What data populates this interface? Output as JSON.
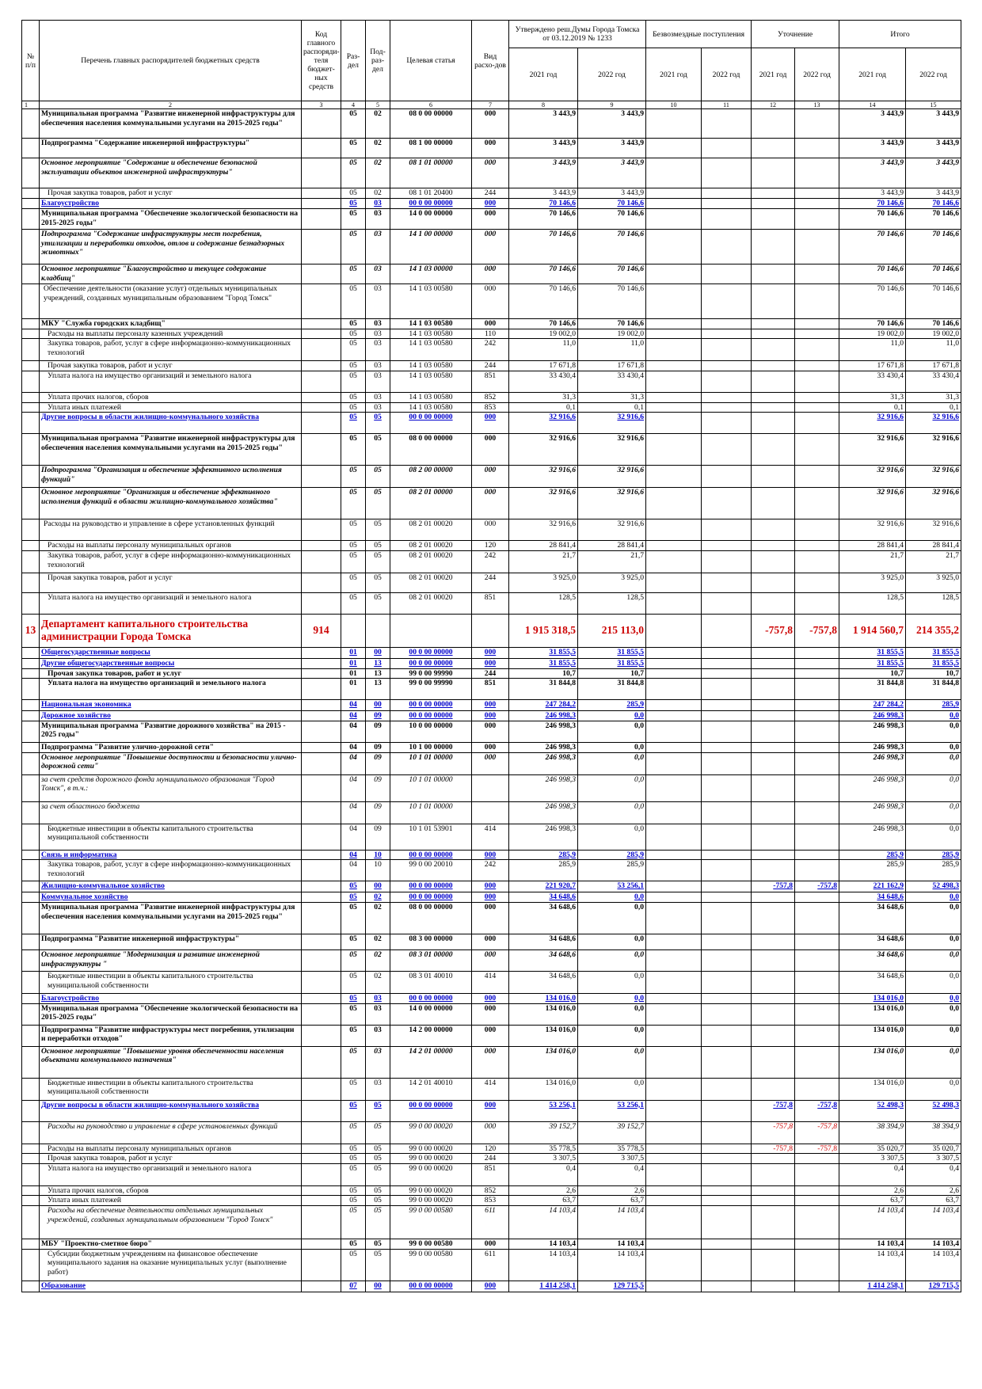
{
  "header": {
    "col1": "№ п/п",
    "col2": "Перечень главных распорядителей бюджетных средств",
    "col3": "Код главного распоряди-теля бюджет-ных средств",
    "col4": "Раз-дел",
    "col5": "Под-раз-дел",
    "col6": "Целевая статья",
    "col7": "Вид расхо-дов",
    "approved": "Утверждено реш.Думы Города Томска от 03.12.2019 № 1233",
    "gratis": "Безвозмездные поступления",
    "clarify": "Уточнение",
    "total": "Итого",
    "y2021": "2021 год",
    "y2022": "2022 год",
    "colnums": [
      "1",
      "2",
      "3",
      "4",
      "5",
      "6",
      "7",
      "8",
      "9",
      "10",
      "11",
      "12",
      "13",
      "14",
      "15"
    ]
  },
  "rows": [
    {
      "s": "b",
      "name": "Муниципальная программа \"Развитие инженерной инфраструктуры для обеспечения населения коммунальными услугами на 2015-2025 годы\"",
      "rz": "05",
      "pr": "02",
      "cs": "08 0 00 00000",
      "vr": "000",
      "a21": "3 443,9",
      "a22": "3 443,9",
      "t21": "3 443,9",
      "t22": "3 443,9",
      "h": 37
    },
    {
      "s": "b",
      "name": "Подпрограмма \"Содержание инженерной инфраструктуры\"",
      "rz": "05",
      "pr": "02",
      "cs": "08 1 00 00000",
      "vr": "000",
      "a21": "3 443,9",
      "a22": "3 443,9",
      "t21": "3 443,9",
      "t22": "3 443,9",
      "h": 25
    },
    {
      "s": "bi",
      "name": " Основное мероприятие \"Содержание и обеспечение безопасной эксплуатации объектов инженерной инфраструктуры\"",
      "rz": "05",
      "pr": "02",
      "cs": "08 1 01 00000",
      "vr": "000",
      "a21": "3 443,9",
      "a22": "3 443,9",
      "t21": "3 443,9",
      "t22": "3 443,9",
      "h": 38
    },
    {
      "s": "ind",
      "name": "Прочая закупка товаров, работ и услуг",
      "rz": "05",
      "pr": "02",
      "cs": "08 1 01 20400",
      "vr": "244",
      "a21": "3 443,9",
      "a22": "3 443,9",
      "t21": "3 443,9",
      "t22": "3 443,9",
      "h": 13
    },
    {
      "s": "blue",
      "name": "Благоустройство",
      "rz": "05",
      "pr": "03",
      "cs": "00 0 00 00000",
      "vr": "000",
      "a21": "70 146,6",
      "a22": "70 146,6",
      "t21": "70 146,6",
      "t22": "70 146,6",
      "h": 13
    },
    {
      "s": "b",
      "name": "Муниципальная программа \"Обеспечение экологической безопасности на 2015-2025 годы\"",
      "rz": "05",
      "pr": "03",
      "cs": "14 0 00 00000",
      "vr": "000",
      "a21": "70 146,6",
      "a22": "70 146,6",
      "t21": "70 146,6",
      "t22": "70 146,6",
      "h": 26
    },
    {
      "s": "bi",
      "name": "Подпрограмма \"Содержание инфраструктуры мест погребения, утилизации и переработки отходов, отлов и содержание безнадзорных животных\"",
      "rz": "05",
      "pr": "03",
      "cs": "14 1 00 00000",
      "vr": "000",
      "a21": "70 146,6",
      "a22": "70 146,6",
      "t21": "70 146,6",
      "t22": "70 146,6",
      "h": 44
    },
    {
      "s": "bi",
      "name": " Основное мероприятие \"Благоустройство и текущее содержание кладбищ\"",
      "rz": "05",
      "pr": "03",
      "cs": "14 1 03 00000",
      "vr": "000",
      "a21": "70 146,6",
      "a22": "70 146,6",
      "t21": "70 146,6",
      "t22": "70 146,6",
      "h": 25
    },
    {
      "s": "ind2",
      "name": "Обеспечение деятельности (оказание услуг) отдельных муниципальных учреждений, созданных муниципальным образованием \"Город Томск\"",
      "rz": "05",
      "pr": "03",
      "cs": "14 1 03 00580",
      "vr": "000",
      "a21": "70 146,6",
      "a22": "70 146,6",
      "t21": "70 146,6",
      "t22": "70 146,6",
      "h": 44
    },
    {
      "s": "b",
      "name": "МКУ \"Служба городских кладбищ\"",
      "rz": "05",
      "pr": "03",
      "cs": "14 1 03 00580",
      "vr": "000",
      "a21": "70 146,6",
      "a22": "70 146,6",
      "t21": "70 146,6",
      "t22": "70 146,6",
      "h": 12
    },
    {
      "s": "ind",
      "name": "Расходы на выплаты персоналу казенных учреждений",
      "rz": "05",
      "pr": "03",
      "cs": "14 1 03 00580",
      "vr": "110",
      "a21": "19 002,0",
      "a22": "19 002,0",
      "t21": "19 002,0",
      "t22": "19 002,0",
      "h": 12
    },
    {
      "s": "ind",
      "name": "Закупка товаров, работ, услуг в сфере информационно-коммуникационных технологий",
      "rz": "05",
      "pr": "03",
      "cs": "14 1 03 00580",
      "vr": "242",
      "a21": "11,0",
      "a22": "11,0",
      "t21": "11,0",
      "t22": "11,0",
      "h": 28
    },
    {
      "s": "ind",
      "name": "Прочая закупка товаров, работ и услуг",
      "rz": "05",
      "pr": "03",
      "cs": "14 1 03 00580",
      "vr": "244",
      "a21": "17 671,8",
      "a22": "17 671,8",
      "t21": "17 671,8",
      "t22": "17 671,8",
      "h": 12
    },
    {
      "s": "ind",
      "name": "Уплата налога на имущество организаций и земельного налога",
      "rz": "05",
      "pr": "03",
      "cs": "14 1 03 00580",
      "vr": "851",
      "a21": "33 430,4",
      "a22": "33 430,4",
      "t21": "33 430,4",
      "t22": "33 430,4",
      "h": 27
    },
    {
      "s": "ind",
      "name": "Уплата прочих налогов, сборов",
      "rz": "05",
      "pr": "03",
      "cs": "14 1 03 00580",
      "vr": "852",
      "a21": "31,3",
      "a22": "31,3",
      "t21": "31,3",
      "t22": "31,3",
      "h": 13
    },
    {
      "s": "ind",
      "name": "Уплата иных платежей",
      "rz": "05",
      "pr": "03",
      "cs": "14 1 03 00580",
      "vr": "853",
      "a21": "0,1",
      "a22": "0,1",
      "t21": "0,1",
      "t22": "0,1",
      "h": 12
    },
    {
      "s": "blue",
      "name": "Другие вопросы в области жилищно-коммунального хозяйства",
      "rz": "05",
      "pr": "05",
      "cs": "00 0 00 00000",
      "vr": "000",
      "a21": "32 916,6",
      "a22": "32 916,6",
      "t21": "32 916,6",
      "t22": "32 916,6",
      "h": 27
    },
    {
      "s": "b",
      "name": "Муниципальная программа \"Развитие инженерной инфраструктуры для обеспечения населения коммунальными услугами на 2015-2025 годы\"",
      "rz": "05",
      "pr": "05",
      "cs": "08 0 00 00000",
      "vr": "000",
      "a21": "32 916,6",
      "a22": "32 916,6",
      "t21": "32 916,6",
      "t22": "32 916,6",
      "h": 40
    },
    {
      "s": "bi",
      "name": "Подпрограмма \"Организация и обеспечение эффективного исполнения функций\"",
      "rz": "05",
      "pr": "05",
      "cs": "08 2 00 00000",
      "vr": "000",
      "a21": "32 916,6",
      "a22": "32 916,6",
      "t21": "32 916,6",
      "t22": "32 916,6",
      "h": 28
    },
    {
      "s": "bi",
      "name": " Основное мероприятие \"Организация и обеспечение эффективного исполнения функций в области жилищно-коммунального хозяйства\"",
      "rz": "05",
      "pr": "05",
      "cs": "08 2 01 00000",
      "vr": "000",
      "a21": "32 916,6",
      "a22": "32 916,6",
      "t21": "32 916,6",
      "t22": "32 916,6",
      "h": 40
    },
    {
      "s": "ind2",
      "name": "Расходы на руководство и управление в сфере установленных функций",
      "rz": "05",
      "pr": "05",
      "cs": "08 2 01 00020",
      "vr": "000",
      "a21": "32 916,6",
      "a22": "32 916,6",
      "t21": "32 916,6",
      "t22": "32 916,6",
      "h": 27
    },
    {
      "s": "ind",
      "name": "Расходы на выплаты персоналу муниципальных органов",
      "rz": "05",
      "pr": "05",
      "cs": "08 2 01 00020",
      "vr": "120",
      "a21": "28 841,4",
      "a22": "28 841,4",
      "t21": "28 841,4",
      "t22": "28 841,4",
      "h": 12
    },
    {
      "s": "ind",
      "name": "Закупка товаров, работ, услуг в сфере информационно-коммуникационных технологий",
      "rz": "05",
      "pr": "05",
      "cs": "08 2 01 00020",
      "vr": "242",
      "a21": "21,7",
      "a22": "21,7",
      "t21": "21,7",
      "t22": "21,7",
      "h": 28
    },
    {
      "s": "ind",
      "name": "Прочая закупка товаров, работ и услуг",
      "rz": "05",
      "pr": "05",
      "cs": "08 2 01 00020",
      "vr": "244",
      "a21": "3 925,0",
      "a22": "3 925,0",
      "t21": "3 925,0",
      "t22": "3 925,0",
      "h": 25
    },
    {
      "s": "ind",
      "name": "Уплата налога на имущество организаций и земельного налога",
      "rz": "05",
      "pr": "05",
      "cs": "08 2 01 00020",
      "vr": "851",
      "a21": "128,5",
      "a22": "128,5",
      "t21": "128,5",
      "t22": "128,5",
      "h": 27
    },
    {
      "s": "dept",
      "num": "13",
      "name": "Департамент капитального строительства администрации Города Томска",
      "kod": "914",
      "a21": "1 915 318,5",
      "a22": "215 113,0",
      "u21": "-757,8",
      "u22": "-757,8",
      "t21": "1 914 560,7",
      "t22": "214 355,2",
      "h": 42
    },
    {
      "s": "blue",
      "name": "Общегосударственные вопросы",
      "rz": "01",
      "pr": "00",
      "cs": "00 0 00 00000",
      "vr": "000",
      "a21": "31 855,5",
      "a22": "31 855,5",
      "t21": "31 855,5",
      "t22": "31 855,5",
      "h": 14
    },
    {
      "s": "blue",
      "name": "Другие общегосударственные вопросы",
      "rz": "01",
      "pr": "13",
      "cs": "00 0 00 00000",
      "vr": "000",
      "a21": "31 855,5",
      "a22": "31 855,5",
      "t21": "31 855,5",
      "t22": "31 855,5",
      "h": 12
    },
    {
      "s": "b",
      "name": "Прочая закупка товаров, работ и услуг",
      "ind": true,
      "rz": "01",
      "pr": "13",
      "cs": "99 0 00 99990",
      "vr": "244",
      "a21": "10,7",
      "a22": "10,7",
      "t21": "10,7",
      "t22": "10,7",
      "h": 12
    },
    {
      "s": "b",
      "name": "Уплата налога на имущество организаций и земельного налога",
      "ind": true,
      "rz": "01",
      "pr": "13",
      "cs": "99 0 00 99990",
      "vr": "851",
      "a21": "31 844,8",
      "a22": "31 844,8",
      "t21": "31 844,8",
      "t22": "31 844,8",
      "h": 27
    },
    {
      "s": "blue",
      "name": "Национальная экономика",
      "rz": "04",
      "pr": "00",
      "cs": "00 0 00 00000",
      "vr": "000",
      "a21": "247 284,2",
      "a22": "285,9",
      "t21": "247 284,2",
      "t22": "285,9",
      "h": 14
    },
    {
      "s": "blue",
      "name": "Дорожное хозяйство",
      "rz": "04",
      "pr": "09",
      "cs": "00 0 00 00000",
      "vr": "000",
      "a21": "246 998,3",
      "a22": "0,0",
      "t21": "246 998,3",
      "t22": "0,0",
      "h": 12
    },
    {
      "s": "b",
      "name": "Муниципальная программа \"Развитие дорожного хозяйства\" на 2015 - 2025 годы\"",
      "rz": "04",
      "pr": "09",
      "cs": "10 0 00 00000",
      "vr": "000",
      "a21": "246 998,3",
      "a22": "0,0",
      "t21": "246 998,3",
      "t22": "0,0",
      "h": 27
    },
    {
      "s": "b",
      "name": "Подпрограмма \"Развитие улично-дорожной сети\"",
      "rz": "04",
      "pr": "09",
      "cs": "10 1 00 00000",
      "vr": "000",
      "a21": "246 998,3",
      "a22": "0,0",
      "t21": "246 998,3",
      "t22": "0,0",
      "h": 13
    },
    {
      "s": "bi",
      "name": " Основное мероприятие \"Повышение доступности и безопасности улично-дорожной сети\"",
      "rz": "04",
      "pr": "09",
      "cs": "10 1 01 00000",
      "vr": "000",
      "a21": "246 998,3",
      "a22": "0,0",
      "t21": "246 998,3",
      "t22": "0,0",
      "h": 28
    },
    {
      "s": "it",
      "name": "за счет средств дорожного фонда муниципального образования \"Город Томск\", в т.ч.:",
      "rz": "04",
      "pr": "09",
      "cs": "10 1 01 00000",
      "vr": "",
      "a21": "246 998,3",
      "a22": "0,0",
      "t21": "246 998,3",
      "t22": "0,0",
      "h": 34
    },
    {
      "s": "it",
      "name": "за счет областного бюджета",
      "rz": "04",
      "pr": "09",
      "cs": "10 1 01 00000",
      "vr": "",
      "a21": "246 998,3",
      "a22": "0,0",
      "t21": "246 998,3",
      "t22": "0,0",
      "h": 28
    },
    {
      "s": "ind",
      "name": "Бюджетные инвестиции в объекты капитального строительства муниципальной собственности",
      "rz": "04",
      "pr": "09",
      "cs": "10 1 01 53901",
      "vr": "414",
      "a21": "246 998,3",
      "a22": "0,0",
      "t21": "246 998,3",
      "t22": "0,0",
      "h": 33
    },
    {
      "s": "blue",
      "name": "Связь и информатика",
      "rz": "04",
      "pr": "10",
      "cs": "00 0 00 00000",
      "vr": "000",
      "a21": "285,9",
      "a22": "285,9",
      "t21": "285,9",
      "t22": "285,9",
      "h": 12
    },
    {
      "s": "ind",
      "name": "Закупка товаров, работ, услуг в сфере информационно-коммуникационных технологий",
      "rz": "04",
      "pr": "10",
      "cs": "99 0 00 20010",
      "vr": "242",
      "a21": "285,9",
      "a22": "285,9",
      "t21": "285,9",
      "t22": "285,9",
      "h": 27
    },
    {
      "s": "blue",
      "name": "Жилищно-коммунальное хозяйство",
      "rz": "05",
      "pr": "00",
      "cs": "00 0 00 00000",
      "vr": "000",
      "a21": "221 920,7",
      "a22": "53 256,1",
      "u21": "-757,8",
      "u22": "-757,8",
      "t21": "221 162,9",
      "t22": "52 498,3",
      "h": 14
    },
    {
      "s": "blue",
      "name": "Коммунальное хозяйство",
      "rz": "05",
      "pr": "02",
      "cs": "00 0 00 00000",
      "vr": "000",
      "a21": "34 648,6",
      "a22": "0,0",
      "t21": "34 648,6",
      "t22": "0,0",
      "h": 12
    },
    {
      "s": "b",
      "name": "Муниципальная программа \"Развитие инженерной инфраструктуры для обеспечения населения коммунальными услугами на 2015-2025 годы\"",
      "rz": "05",
      "pr": "02",
      "cs": "08 0 00 00000",
      "vr": "000",
      "a21": "34 648,6",
      "a22": "0,0",
      "t21": "34 648,6",
      "t22": "0,0",
      "h": 40
    },
    {
      "s": "b",
      "name": "Подпрограмма \"Развитие инженерной инфраструктуры\"",
      "rz": "05",
      "pr": "02",
      "cs": "08 3 00 00000",
      "vr": "000",
      "a21": "34 648,6",
      "a22": "0,0",
      "t21": "34 648,6",
      "t22": "0,0",
      "h": 20
    },
    {
      "s": "bi",
      "name": " Основное мероприятие \"Модернизация и развитие инженерной инфраструктуры \"",
      "rz": "05",
      "pr": "02",
      "cs": "08 3 01 00000",
      "vr": "000",
      "a21": "34 648,6",
      "a22": "0,0",
      "t21": "34 648,6",
      "t22": "0,0",
      "h": 27
    },
    {
      "s": "ind",
      "name": "Бюджетные инвестиции в объекты капитального строительства муниципальной собственности",
      "rz": "05",
      "pr": "02",
      "cs": "08 3 01 40010",
      "vr": "414",
      "a21": "34 648,6",
      "a22": "0,0",
      "t21": "34 648,6",
      "t22": "0,0",
      "h": 28
    },
    {
      "s": "blue",
      "name": "Благоустройство",
      "rz": "05",
      "pr": "03",
      "cs": "00 0 00 00000",
      "vr": "000",
      "a21": "134 016,0",
      "a22": "0,0",
      "t21": "134 016,0",
      "t22": "0,0",
      "h": 12
    },
    {
      "s": "b",
      "name": "Муниципальная программа \"Обеспечение экологической безопасности на 2015-2025 годы\"",
      "rz": "05",
      "pr": "03",
      "cs": "14 0 00 00000",
      "vr": "000",
      "a21": "134 016,0",
      "a22": "0,0",
      "t21": "134 016,0",
      "t22": "0,0",
      "h": 27
    },
    {
      "s": "b",
      "name": "Подпрограмма \"Развитие инфраструктуры мест погребения, утилизации и переработки отходов\"",
      "rz": "05",
      "pr": "03",
      "cs": "14 2 00 00000",
      "vr": "000",
      "a21": "134 016,0",
      "a22": "0,0",
      "t21": "134 016,0",
      "t22": "0,0",
      "h": 27
    },
    {
      "s": "bi",
      "name": " Основное мероприятие \"Повышение уровня обеспеченности населения объектами коммунального назначения\"",
      "rz": "05",
      "pr": "03",
      "cs": "14 2 01 00000",
      "vr": "000",
      "a21": "134 016,0",
      "a22": "0,0",
      "t21": "134 016,0",
      "t22": "0,0",
      "h": 40
    },
    {
      "s": "ind",
      "name": "Бюджетные инвестиции в объекты капитального строительства муниципальной собственности",
      "rz": "05",
      "pr": "03",
      "cs": "14 2 01 40010",
      "vr": "414",
      "a21": "134 016,0",
      "a22": "0,0",
      "t21": "134 016,0",
      "t22": "0,0",
      "h": 28
    },
    {
      "s": "blue",
      "name": "Другие вопросы в области жилищно-коммунального хозяйства",
      "rz": "05",
      "pr": "05",
      "cs": "00 0 00 00000",
      "vr": "000",
      "a21": "53 256,1",
      "a22": "53 256,1",
      "u21": "-757,8",
      "u22": "-757,8",
      "t21": "52 498,3",
      "t22": "52 498,3",
      "h": 27
    },
    {
      "s": "it",
      "ind": true,
      "name": "Расходы на руководство и управление в сфере установленных функций",
      "rz": "05",
      "pr": "05",
      "cs": "99 0 00 00020",
      "vr": "000",
      "a21": "39 152,7",
      "a22": "39 152,7",
      "u21": "-757,8",
      "u22": "-757,8",
      "t21": "38 394,9",
      "t22": "38 394,9",
      "h": 28
    },
    {
      "s": "ind",
      "name": "Расходы на выплаты персоналу муниципальных органов",
      "rz": "05",
      "pr": "05",
      "cs": "99 0 00 00020",
      "vr": "120",
      "a21": "35 778,5",
      "a22": "35 778,5",
      "u21": "-757,8",
      "u22": "-757,8",
      "t21": "35 020,7",
      "t22": "35 020,7",
      "h": 12
    },
    {
      "s": "ind",
      "name": "Прочая закупка товаров, работ и услуг",
      "rz": "05",
      "pr": "05",
      "cs": "99 0 00 00020",
      "vr": "244",
      "a21": "3 307,5",
      "a22": "3 307,5",
      "t21": "3 307,5",
      "t22": "3 307,5",
      "h": 12
    },
    {
      "s": "ind",
      "name": "Уплата налога на имущество организаций и земельного налога",
      "rz": "05",
      "pr": "05",
      "cs": "99 0 00 00020",
      "vr": "851",
      "a21": "0,4",
      "a22": "0,4",
      "t21": "0,4",
      "t22": "0,4",
      "h": 28
    },
    {
      "s": "ind",
      "name": "Уплата прочих налогов, сборов",
      "rz": "05",
      "pr": "05",
      "cs": "99 0 00 00020",
      "vr": "852",
      "a21": "2,6",
      "a22": "2,6",
      "t21": "2,6",
      "t22": "2,6",
      "h": 12
    },
    {
      "s": "ind",
      "name": "Уплата иных платежей",
      "rz": "05",
      "pr": "05",
      "cs": "99 0 00 00020",
      "vr": "853",
      "a21": "63,7",
      "a22": "63,7",
      "t21": "63,7",
      "t22": "63,7",
      "h": 12
    },
    {
      "s": "it",
      "ind": true,
      "name": "Расходы на обеспечение деятельности отдельных муниципальных учреждений, созданных муниципальным образованием \"Город Томск\"",
      "rz": "05",
      "pr": "05",
      "cs": "99 0 00 00580",
      "vr": "611",
      "a21": "14 103,4",
      "a22": "14 103,4",
      "t21": "14 103,4",
      "t22": "14 103,4",
      "h": 42
    },
    {
      "s": "b",
      "name": "МБУ \"Проектно-сметное бюро\"",
      "rz": "05",
      "pr": "05",
      "cs": "99 0 00 00580",
      "vr": "000",
      "a21": "14 103,4",
      "a22": "14 103,4",
      "t21": "14 103,4",
      "t22": "14 103,4",
      "h": 12
    },
    {
      "s": "ind",
      "name": "Субсидии бюджетным учреждениям на финансовое обеспечение муниципального задания на оказание муниципальных услуг (выполнение работ)",
      "rz": "05",
      "pr": "05",
      "cs": "99 0 00 00580",
      "vr": "611",
      "a21": "14 103,4",
      "a22": "14 103,4",
      "t21": "14 103,4",
      "t22": "14 103,4",
      "h": 40
    },
    {
      "s": "blue",
      "name": "Образование",
      "rz": "07",
      "pr": "00",
      "cs": "00 0 00 00000",
      "vr": "000",
      "a21": "1 414 258,1",
      "a22": "129 715,5",
      "t21": "1 414 258,1",
      "t22": "129 715,5",
      "h": 14
    }
  ]
}
